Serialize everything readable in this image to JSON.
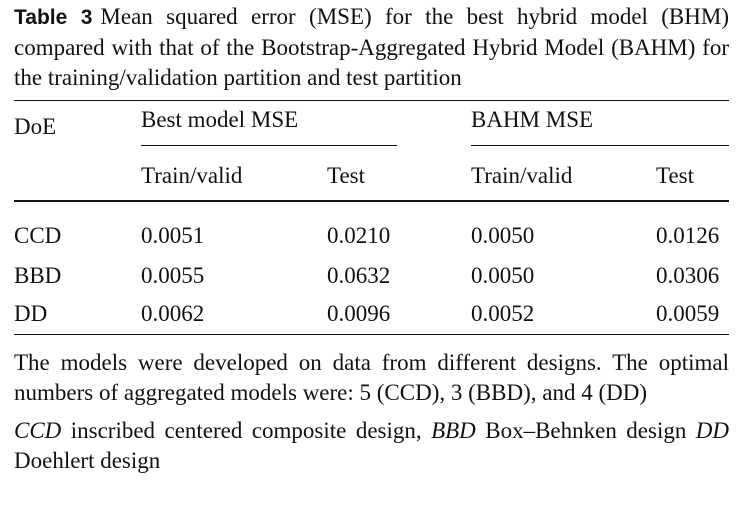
{
  "caption": {
    "label": "Table 3",
    "text": "Mean squared error (MSE) for the best hybrid model (BHM) compared with that of the Bootstrap-Aggregated Hybrid Model (BAHM) for the training/validation partition and test partition"
  },
  "table": {
    "row_header": "DoE",
    "groups": [
      "Best model MSE",
      "BAHM MSE"
    ],
    "subheaders": [
      "Train/valid",
      "Test",
      "Train/valid",
      "Test"
    ],
    "rows": [
      {
        "doe": "CCD",
        "values": [
          "0.0051",
          "0.0210",
          "0.0050",
          "0.0126"
        ]
      },
      {
        "doe": "BBD",
        "values": [
          "0.0055",
          "0.0632",
          "0.0050",
          "0.0306"
        ]
      },
      {
        "doe": "DD",
        "values": [
          "0.0062",
          "0.0096",
          "0.0052",
          "0.0059"
        ]
      }
    ]
  },
  "notes": {
    "paragraph": "The models were developed on data from different designs. The optimal numbers of aggregated models were: 5 (CCD), 3 (BBD), and 4 (DD)",
    "abbreviations": [
      {
        "abbr": "CCD",
        "text": "inscribed centered composite design,"
      },
      {
        "abbr": "BBD",
        "text": "Box–Behnken design"
      },
      {
        "abbr": "DD",
        "text": "Doehlert design"
      }
    ]
  }
}
